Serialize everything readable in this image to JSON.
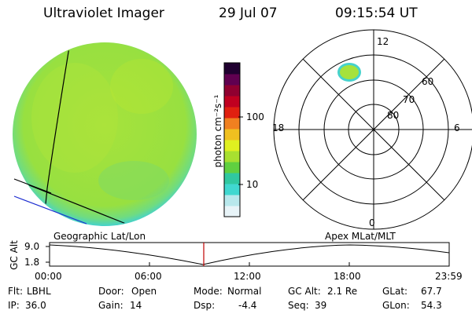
{
  "header": {
    "title": "Ultraviolet Imager",
    "date": "29 Jul 07",
    "time": "09:15:54 UT"
  },
  "colorbar": {
    "unit_label": "photon cm⁻²s⁻¹",
    "ticks": [
      "100",
      "10"
    ]
  },
  "polar_plot": {
    "mlt_labels": {
      "top": "12",
      "bottom": "0",
      "left": "18",
      "right": "6"
    },
    "lat_labels": [
      "60",
      "70",
      "80"
    ]
  },
  "timeline": {
    "left_title": "Geographic Lat/Lon",
    "right_title": "Apex MLat/MLT",
    "y_axis_label": "GC Alt",
    "y_ticks": [
      "9.0",
      "1.8"
    ],
    "x_ticks": [
      "00:00",
      "06:00",
      "12:00",
      "18:00",
      "23:59"
    ],
    "marker_time_hours": 9.26
  },
  "info": {
    "row1": [
      {
        "key": "Flt:",
        "val": "LBHL"
      },
      {
        "key": "Door:",
        "val": "Open"
      },
      {
        "key": "Mode:",
        "val": "Normal"
      },
      {
        "key": "GC Alt:",
        "val": "2.1 Re"
      },
      {
        "key": "GLat:",
        "val": "67.7"
      }
    ],
    "row2": [
      {
        "key": "IP:",
        "val": "36.0"
      },
      {
        "key": "Gain:",
        "val": "14"
      },
      {
        "key": "Dsp:",
        "val": "-4.4"
      },
      {
        "key": "Seq:",
        "val": "39"
      },
      {
        "key": "GLon:",
        "val": "54.3"
      }
    ]
  },
  "colors": {
    "disk_green": "#9be23a",
    "disk_edge": "#4fd3c9",
    "colorbar": [
      "#e8f4f8",
      "#b8e8ec",
      "#40d8d0",
      "#30c8a0",
      "#60d040",
      "#a8e030",
      "#e0f020",
      "#f0c020",
      "#f08020",
      "#e02010",
      "#c00020",
      "#900030",
      "#600050",
      "#200030"
    ],
    "marker": "#c00000"
  }
}
